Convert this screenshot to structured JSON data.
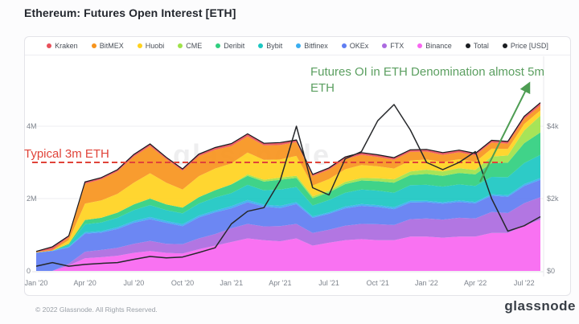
{
  "title": "Ethereum: Futures Open Interest [ETH]",
  "watermark": "glassnode",
  "footer": {
    "copyright": "© 2022 Glassnode. All Rights Reserved.",
    "logo_text": "glassnode"
  },
  "annotations": {
    "typical": {
      "text": "Typical 3m ETH",
      "color": "#e04339",
      "level_m_eth": 3
    },
    "futures": {
      "text": "Futures OI in ETH Denomination almost 5m ETH",
      "color": "#5b9f60"
    }
  },
  "legend": {
    "items": [
      {
        "label": "Kraken",
        "color": "#e8505b"
      },
      {
        "label": "BitMEX",
        "color": "#f7941d"
      },
      {
        "label": "Huobi",
        "color": "#ffd21e"
      },
      {
        "label": "CME",
        "color": "#9fe24a"
      },
      {
        "label": "Deribit",
        "color": "#30cf7f"
      },
      {
        "label": "Bybit",
        "color": "#1bc7c2"
      },
      {
        "label": "Bitfinex",
        "color": "#3aaef0"
      },
      {
        "label": "OKEx",
        "color": "#5f7df2"
      },
      {
        "label": "FTX",
        "color": "#ab6ae0"
      },
      {
        "label": "Binance",
        "color": "#f966f1"
      },
      {
        "label": "Total",
        "color": "#1a1d21"
      },
      {
        "label": "Price [USD]",
        "color": "#1a1d21"
      }
    ]
  },
  "chart_data": {
    "type": "area",
    "stacked": true,
    "grid": "horizontal",
    "x": [
      "2020-01",
      "2020-02",
      "2020-03",
      "2020-04",
      "2020-05",
      "2020-06",
      "2020-07",
      "2020-08",
      "2020-09",
      "2020-10",
      "2020-11",
      "2020-12",
      "2021-01",
      "2021-02",
      "2021-03",
      "2021-04",
      "2021-05",
      "2021-06",
      "2021-07",
      "2021-08",
      "2021-09",
      "2021-10",
      "2021-11",
      "2021-12",
      "2022-01",
      "2022-02",
      "2022-03",
      "2022-04",
      "2022-05",
      "2022-06",
      "2022-07",
      "2022-08"
    ],
    "x_tick_labels": [
      "Jan '20",
      "Apr '20",
      "Jul '20",
      "Oct '20",
      "Jan '21",
      "Apr '21",
      "Jul '21",
      "Oct '21",
      "Jan '22",
      "Apr '22",
      "Jul '22"
    ],
    "x_tick_every_months": 3,
    "y_axis_left": {
      "unit": "M ETH",
      "range": [
        0,
        5.8
      ],
      "ticks": [
        {
          "v": 0,
          "label": "0"
        },
        {
          "v": 2,
          "label": "2M"
        },
        {
          "v": 4,
          "label": "4M"
        }
      ]
    },
    "y_axis_right": {
      "unit": "USD",
      "range": [
        0,
        5800
      ],
      "ticks": [
        {
          "v": 0,
          "label": "$0"
        },
        {
          "v": 2000,
          "label": "$2k"
        },
        {
          "v": 4000,
          "label": "$4k"
        }
      ]
    },
    "series_note": "stacked bottom-to-top, values in millions of ETH",
    "series": [
      {
        "name": "Binance",
        "color": "#f966f1",
        "values": [
          0.0,
          0.0,
          0.15,
          0.35,
          0.38,
          0.42,
          0.5,
          0.55,
          0.5,
          0.48,
          0.6,
          0.7,
          0.8,
          0.9,
          0.85,
          0.82,
          0.9,
          0.7,
          0.78,
          0.85,
          0.88,
          0.85,
          0.85,
          0.95,
          0.95,
          0.92,
          0.95,
          0.95,
          1.05,
          1.05,
          1.25,
          1.42
        ]
      },
      {
        "name": "FTX",
        "color": "#ab6ae0",
        "values": [
          0.0,
          0.0,
          0.05,
          0.18,
          0.2,
          0.22,
          0.25,
          0.28,
          0.25,
          0.26,
          0.3,
          0.32,
          0.38,
          0.4,
          0.38,
          0.42,
          0.4,
          0.35,
          0.36,
          0.4,
          0.42,
          0.44,
          0.42,
          0.48,
          0.5,
          0.5,
          0.52,
          0.5,
          0.58,
          0.55,
          0.62,
          0.62
        ]
      },
      {
        "name": "OKEx",
        "color": "#5f7df2",
        "values": [
          0.5,
          0.55,
          0.45,
          0.5,
          0.48,
          0.52,
          0.58,
          0.6,
          0.58,
          0.5,
          0.58,
          0.6,
          0.55,
          0.6,
          0.55,
          0.5,
          0.55,
          0.42,
          0.44,
          0.48,
          0.5,
          0.48,
          0.44,
          0.46,
          0.45,
          0.44,
          0.44,
          0.42,
          0.45,
          0.45,
          0.48,
          0.48
        ]
      },
      {
        "name": "Bitfinex",
        "color": "#3aaef0",
        "values": [
          0.01,
          0.01,
          0.02,
          0.04,
          0.04,
          0.05,
          0.05,
          0.06,
          0.05,
          0.05,
          0.05,
          0.05,
          0.06,
          0.06,
          0.05,
          0.06,
          0.05,
          0.04,
          0.04,
          0.05,
          0.05,
          0.05,
          0.05,
          0.05,
          0.04,
          0.04,
          0.04,
          0.04,
          0.04,
          0.04,
          0.05,
          0.05
        ]
      },
      {
        "name": "Bybit",
        "color": "#1bc7c2",
        "values": [
          0.0,
          0.0,
          0.05,
          0.22,
          0.24,
          0.26,
          0.3,
          0.33,
          0.3,
          0.3,
          0.33,
          0.36,
          0.36,
          0.42,
          0.4,
          0.45,
          0.42,
          0.3,
          0.34,
          0.38,
          0.4,
          0.4,
          0.4,
          0.43,
          0.44,
          0.43,
          0.44,
          0.44,
          0.48,
          0.5,
          0.58,
          0.64
        ]
      },
      {
        "name": "Deribit",
        "color": "#30cf7f",
        "values": [
          0.0,
          0.0,
          0.03,
          0.12,
          0.13,
          0.14,
          0.16,
          0.18,
          0.16,
          0.16,
          0.18,
          0.2,
          0.24,
          0.25,
          0.24,
          0.27,
          0.25,
          0.2,
          0.21,
          0.24,
          0.25,
          0.26,
          0.28,
          0.28,
          0.3,
          0.3,
          0.32,
          0.32,
          0.38,
          0.4,
          0.55,
          0.62
        ]
      },
      {
        "name": "CME",
        "color": "#9fe24a",
        "values": [
          0.0,
          0.0,
          0.0,
          0.0,
          0.0,
          0.0,
          0.0,
          0.0,
          0.0,
          0.0,
          0.0,
          0.0,
          0.0,
          0.04,
          0.05,
          0.06,
          0.06,
          0.05,
          0.05,
          0.06,
          0.07,
          0.08,
          0.09,
          0.1,
          0.12,
          0.12,
          0.13,
          0.12,
          0.18,
          0.2,
          0.35,
          0.46
        ]
      },
      {
        "name": "Huobi",
        "color": "#ffd21e",
        "values": [
          0.0,
          0.0,
          0.1,
          0.45,
          0.48,
          0.52,
          0.6,
          0.7,
          0.6,
          0.5,
          0.58,
          0.6,
          0.58,
          0.6,
          0.55,
          0.5,
          0.55,
          0.3,
          0.32,
          0.35,
          0.36,
          0.33,
          0.3,
          0.3,
          0.28,
          0.26,
          0.25,
          0.22,
          0.22,
          0.18,
          0.18,
          0.15
        ]
      },
      {
        "name": "BitMEX",
        "color": "#f7941d",
        "values": [
          0.02,
          0.03,
          0.08,
          0.55,
          0.58,
          0.62,
          0.72,
          0.75,
          0.65,
          0.52,
          0.55,
          0.52,
          0.48,
          0.45,
          0.4,
          0.4,
          0.38,
          0.26,
          0.26,
          0.28,
          0.28,
          0.26,
          0.24,
          0.24,
          0.22,
          0.2,
          0.19,
          0.18,
          0.17,
          0.15,
          0.14,
          0.13
        ]
      },
      {
        "name": "Kraken",
        "color": "#e8505b",
        "values": [
          0.01,
          0.08,
          0.04,
          0.05,
          0.05,
          0.05,
          0.06,
          0.06,
          0.05,
          0.05,
          0.06,
          0.06,
          0.07,
          0.07,
          0.06,
          0.07,
          0.06,
          0.05,
          0.05,
          0.06,
          0.06,
          0.06,
          0.06,
          0.06,
          0.06,
          0.06,
          0.06,
          0.06,
          0.06,
          0.06,
          0.07,
          0.08
        ]
      }
    ],
    "total": {
      "name": "Total",
      "color": "#15181c",
      "note": "sum of stacked series, drawn as black line on stack top"
    },
    "price": {
      "name": "Price [USD]",
      "color": "#26282b",
      "axis": "right",
      "values": [
        130,
        230,
        130,
        180,
        210,
        230,
        320,
        400,
        360,
        385,
        510,
        640,
        1300,
        1650,
        1750,
        2500,
        4000,
        2300,
        2100,
        3100,
        3300,
        4150,
        4600,
        3900,
        3000,
        2800,
        3000,
        3300,
        2000,
        1100,
        1250,
        1500
      ]
    }
  }
}
